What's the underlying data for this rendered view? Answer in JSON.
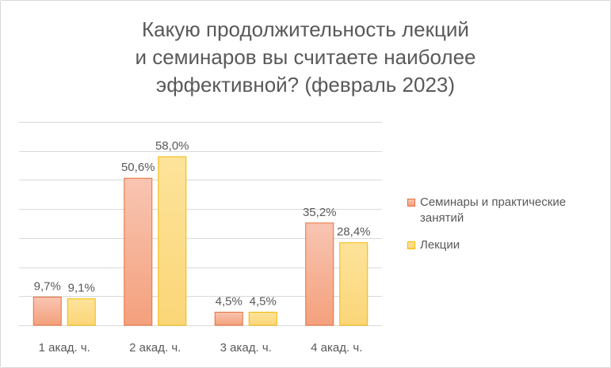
{
  "chart_data": {
    "type": "bar",
    "title": "Какую продолжительность лекций и семинаров вы считаете наиболее эффективной? (февраль 2023)",
    "title_lines": [
      "Какую продолжительность лекций",
      "и семинаров вы считаете наиболее",
      "эффективной? (февраль 2023)"
    ],
    "categories": [
      "1 акад. ч.",
      "2 акад. ч.",
      "3 акад. ч.",
      "4 акад. ч."
    ],
    "series": [
      {
        "name": "Семинары и практические занятий",
        "legend_lines": [
          "Семинары и практические",
          "занятий"
        ],
        "values": [
          9.7,
          50.6,
          4.5,
          35.2
        ],
        "labels": [
          "9,7%",
          "50,6%",
          "4,5%",
          "35,2%"
        ],
        "color_top": "#f8c5b2",
        "color_bottom": "#f4a07c",
        "stroke": "#e8703a"
      },
      {
        "name": "Лекции",
        "legend_lines": [
          "Лекции"
        ],
        "values": [
          9.1,
          58.0,
          4.5,
          28.4
        ],
        "labels": [
          "9,1%",
          "58,0%",
          "4,5%",
          "28,4%"
        ],
        "color_top": "#fde39a",
        "color_bottom": "#fbd678",
        "stroke": "#f5b800"
      }
    ],
    "ylim": [
      0,
      70
    ],
    "y_gridline_step": 10,
    "grid": true,
    "y_axis_labels": false,
    "legend_position": "right",
    "text_color": "#595959",
    "grid_color": "#d9d9d9"
  }
}
